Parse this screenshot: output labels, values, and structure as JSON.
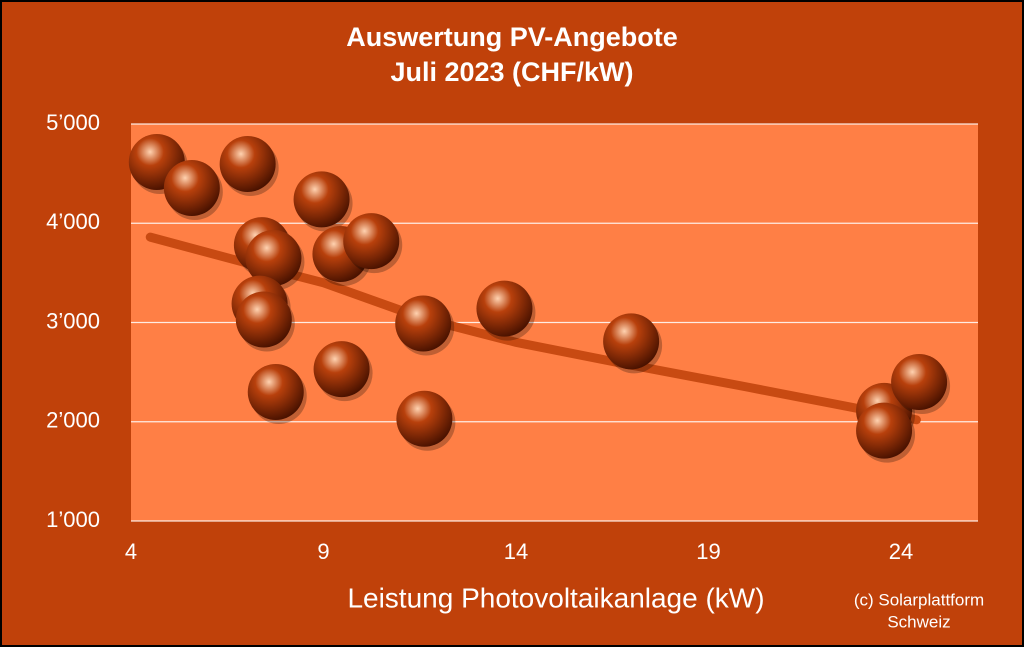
{
  "chart_data": {
    "type": "scatter",
    "title": [
      "Auswertung PV-Angebote",
      "Juli 2023 (CHF/kW)"
    ],
    "x_label": "Leistung Photovoltaikanlage (kW)",
    "annotation": [
      "(c) Solarplattform",
      "Schweiz"
    ],
    "background": "#c0410a",
    "plot_background": "#ff7f45",
    "grid": true,
    "xlim": [
      4,
      26
    ],
    "ylim": [
      1000,
      5000
    ],
    "xticks": [
      4,
      9,
      14,
      19,
      24
    ],
    "yticks": [
      {
        "value": 1000,
        "label": "1’000"
      },
      {
        "value": 2000,
        "label": "2’000"
      },
      {
        "value": 3000,
        "label": "3’000"
      },
      {
        "value": 4000,
        "label": "4’000"
      },
      {
        "value": 5000,
        "label": "5’000"
      }
    ],
    "series": [
      {
        "color": "#b8400c",
        "x": [
          4.67,
          5.58,
          7.03,
          7.4,
          7.7,
          7.34,
          7.45,
          7.76,
          8.95,
          9.44,
          10.24,
          9.47,
          11.59,
          11.62,
          13.7,
          16.99,
          23.56,
          23.56,
          24.47
        ],
        "values": [
          4617,
          4355,
          4597,
          3780,
          3650,
          3190,
          3030,
          2300,
          4240,
          3690,
          3820,
          2530,
          2990,
          2030,
          3140,
          2810,
          2110,
          1910,
          2400
        ]
      }
    ],
    "trend": {
      "color": "#c84a12",
      "x": [
        4.5,
        7,
        9,
        11.6,
        14,
        17,
        20,
        24.4
      ],
      "values": [
        3860,
        3600,
        3400,
        3040,
        2800,
        2570,
        2350,
        2020
      ]
    }
  }
}
